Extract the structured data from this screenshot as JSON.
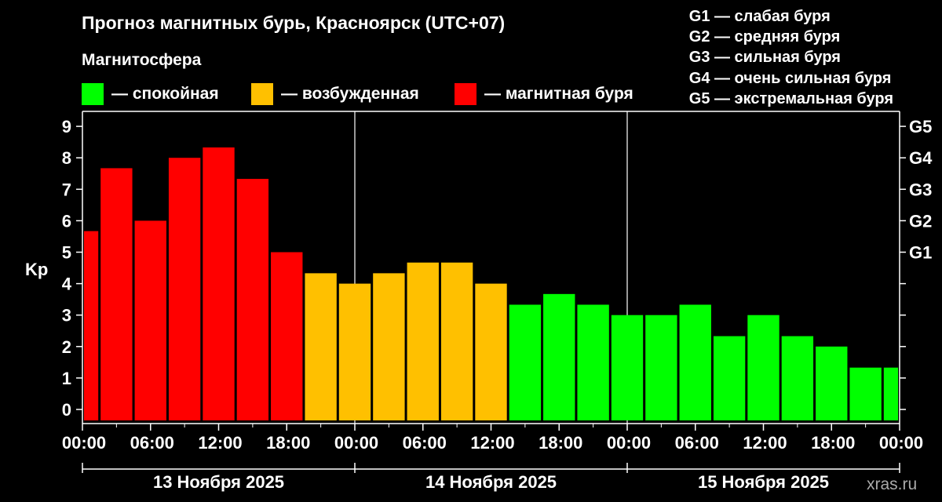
{
  "header": {
    "title": "Прогноз магнитных бурь, Красноярск (UTC+07)",
    "subtitle": "Магнитосфера"
  },
  "legend": [
    {
      "label": "— спокойная",
      "color": "#00ff00"
    },
    {
      "label": "— возбужденная",
      "color": "#ffc000"
    },
    {
      "label": "— магнитная буря",
      "color": "#ff0000"
    }
  ],
  "g_legend": [
    "G1 — слабая буря",
    "G2 — средняя буря",
    "G3 — сильная буря",
    "G4 — очень сильная буря",
    "G5 — экстремальная буря"
  ],
  "watermark": "xras.ru",
  "chart_data": {
    "type": "bar",
    "ylabel": "Kp",
    "ylim": [
      0,
      9
    ],
    "yticks": [
      "0",
      "1",
      "2",
      "3",
      "4",
      "5",
      "6",
      "7",
      "8",
      "9"
    ],
    "g_ticks": [
      {
        "label": "G1",
        "kp": 5
      },
      {
        "label": "G2",
        "kp": 6
      },
      {
        "label": "G3",
        "kp": 7
      },
      {
        "label": "G4",
        "kp": 8
      },
      {
        "label": "G5",
        "kp": 9
      }
    ],
    "x_tick_labels": [
      "00:00",
      "06:00",
      "12:00",
      "18:00",
      "00:00",
      "06:00",
      "12:00",
      "18:00",
      "00:00",
      "06:00",
      "12:00",
      "18:00",
      "00:00"
    ],
    "days": [
      "13 Ноября 2025",
      "14 Ноября 2025",
      "15 Ноября 2025"
    ],
    "bar_hours": [
      0,
      3,
      6,
      9,
      12,
      15,
      18,
      21,
      24,
      27,
      30,
      33,
      36,
      39,
      42,
      45,
      48,
      51,
      54,
      57,
      60,
      63,
      66,
      69,
      72
    ],
    "values": [
      5.67,
      7.67,
      6.0,
      8.0,
      8.33,
      7.33,
      5.0,
      4.33,
      4.0,
      4.33,
      4.67,
      4.67,
      4.0,
      3.33,
      3.67,
      3.33,
      3.0,
      3.0,
      3.33,
      2.33,
      3.0,
      2.33,
      2.0,
      1.33,
      1.33
    ],
    "colors": {
      "quiet": "#00ff00",
      "active": "#ffc000",
      "storm": "#ff0000"
    },
    "thresholds": {
      "active_min": 4,
      "storm_min": 5
    }
  }
}
